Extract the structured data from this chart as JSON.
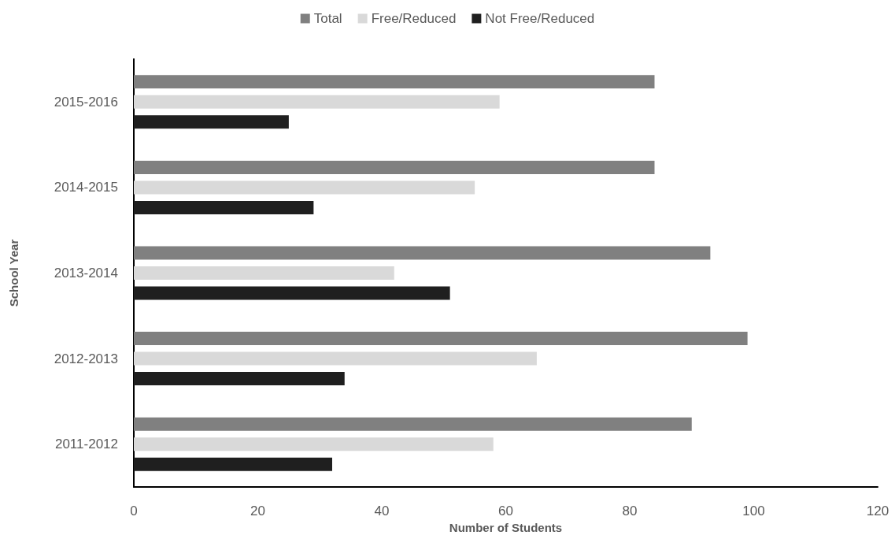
{
  "chart_data": {
    "type": "bar",
    "orientation": "horizontal",
    "xlabel": "Number of Students",
    "ylabel": "School Year",
    "categories": [
      "2015-2016",
      "2014-2015",
      "2013-2014",
      "2012-2013",
      "2011-2012"
    ],
    "series": [
      {
        "name": "Total",
        "color": "#808080",
        "values": [
          84,
          84,
          93,
          99,
          90
        ]
      },
      {
        "name": "Free/Reduced",
        "color": "#d9d9d9",
        "values": [
          59,
          55,
          42,
          65,
          58
        ]
      },
      {
        "name": "Not Free/Reduced",
        "color": "#1f1f1f",
        "values": [
          25,
          29,
          51,
          34,
          32
        ]
      }
    ],
    "xlim": [
      0,
      120
    ],
    "xticks": [
      0,
      20,
      40,
      60,
      80,
      100,
      120
    ],
    "grid": false,
    "legend": "top"
  }
}
